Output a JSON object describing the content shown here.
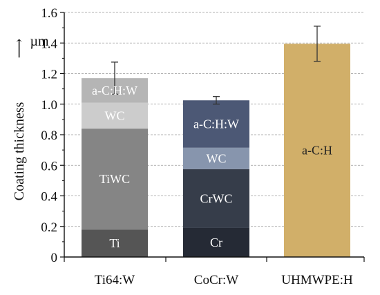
{
  "chart_data": {
    "type": "bar",
    "stacked": true,
    "title": "",
    "xlabel": "",
    "ylabel": "Coating thickness",
    "ylabel_arrow": "⟶",
    "unit": "µm",
    "ylim": [
      0,
      1.6
    ],
    "yticks": [
      "0",
      "0.2",
      "0.4",
      "0.6",
      "0.8",
      "1.0",
      "1.2",
      "1.4",
      "1.6"
    ],
    "ytick_values": [
      0,
      0.2,
      0.4,
      0.6,
      0.8,
      1.0,
      1.2,
      1.4,
      1.6
    ],
    "grid": "horizontal-dashed",
    "categories": [
      "Ti64:W",
      "CoCr:W",
      "UHMWPE:H"
    ],
    "bars": [
      {
        "category": "Ti64:W",
        "total": 1.17,
        "error": 0.105,
        "segments": [
          {
            "label": "Ti",
            "value": 0.18,
            "color": "#555555",
            "text_color": "#ffffff"
          },
          {
            "label": "TiWC",
            "value": 0.66,
            "color": "#858585",
            "text_color": "#ffffff"
          },
          {
            "label": "WC",
            "value": 0.17,
            "color": "#cccccc",
            "text_color": "#ffffff"
          },
          {
            "label": "a-C:H:W",
            "value": 0.16,
            "color": "#b5b5b5",
            "text_color": "#ffffff"
          }
        ]
      },
      {
        "category": "CoCr:W",
        "total": 1.025,
        "error": 0.025,
        "segments": [
          {
            "label": "Cr",
            "value": 0.19,
            "color": "#252a35",
            "text_color": "#ffffff"
          },
          {
            "label": "CrWC",
            "value": 0.385,
            "color": "#363d4a",
            "text_color": "#ffffff"
          },
          {
            "label": "WC",
            "value": 0.14,
            "color": "#8795ad",
            "text_color": "#ffffff"
          },
          {
            "label": "a-C:H:W",
            "value": 0.31,
            "color": "#4c5875",
            "text_color": "#ffffff"
          }
        ]
      },
      {
        "category": "UHMWPE:H",
        "total": 1.395,
        "error": 0.115,
        "segments": [
          {
            "label": "a-C:H",
            "value": 1.395,
            "color": "#d1af69",
            "text_color": "#222222"
          }
        ]
      }
    ]
  }
}
